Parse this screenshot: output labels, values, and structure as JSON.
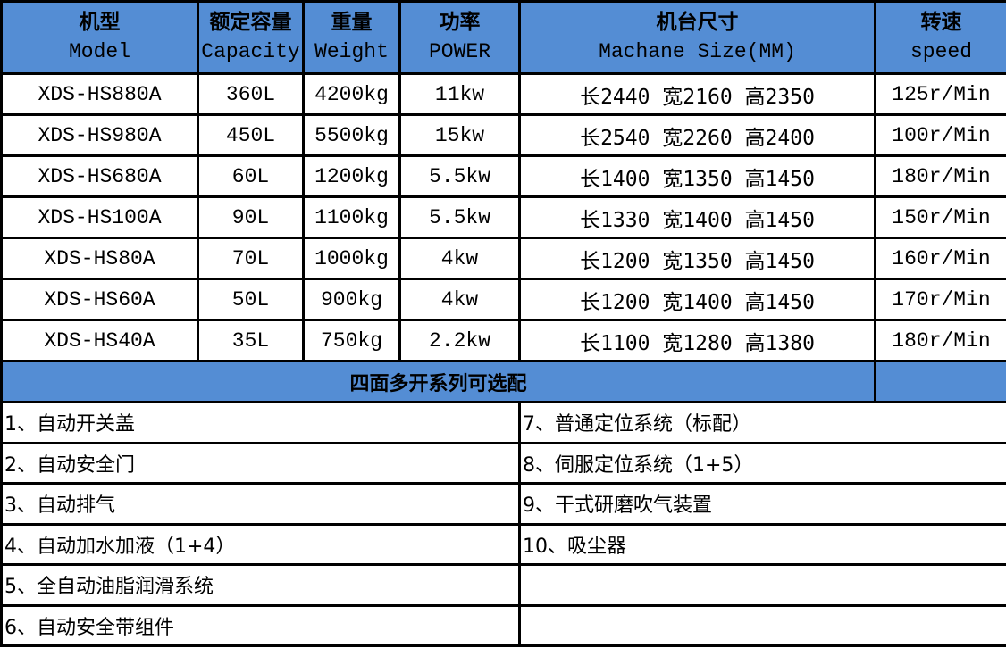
{
  "header": [
    {
      "cn": "机型",
      "en": "Model"
    },
    {
      "cn": "额定容量",
      "en": "Capacity"
    },
    {
      "cn": "重量",
      "en": "Weight"
    },
    {
      "cn": "功率",
      "en": "POWER"
    },
    {
      "cn": "机台尺寸",
      "en": "Machane Size(MM)"
    },
    {
      "cn": "转速",
      "en": "speed"
    }
  ],
  "rows": [
    {
      "model": "XDS-HS880A",
      "capacity": "360L",
      "weight": "4200kg",
      "power": "11kw",
      "size": "长2440 宽2160 高2350",
      "speed": "125r/Min"
    },
    {
      "model": "XDS-HS980A",
      "capacity": "450L",
      "weight": "5500kg",
      "power": "15kw",
      "size": "长2540 宽2260 高2400",
      "speed": "100r/Min"
    },
    {
      "model": "XDS-HS680A",
      "capacity": "60L",
      "weight": "1200kg",
      "power": "5.5kw",
      "size": "长1400 宽1350 高1450",
      "speed": "180r/Min"
    },
    {
      "model": "XDS-HS100A",
      "capacity": "90L",
      "weight": "1100kg",
      "power": "5.5kw",
      "size": "长1330 宽1400 高1450",
      "speed": "150r/Min"
    },
    {
      "model": "XDS-HS80A",
      "capacity": "70L",
      "weight": "1000kg",
      "power": "4kw",
      "size": "长1200 宽1350 高1450",
      "speed": "160r/Min"
    },
    {
      "model": "XDS-HS60A",
      "capacity": "50L",
      "weight": "900kg",
      "power": "4kw",
      "size": "长1200 宽1400 高1450",
      "speed": "170r/Min"
    },
    {
      "model": "XDS-HS40A",
      "capacity": "35L",
      "weight": "750kg",
      "power": "2.2kw",
      "size": "长1100 宽1280 高1380",
      "speed": "180r/Min"
    }
  ],
  "series_title": "四面多开系列可选配",
  "options_left": [
    "1、自动开关盖",
    "2、自动安全门",
    "3、自动排气",
    "4、自动加水加液（1+4）",
    "5、全自动油脂润滑系统",
    "6、自动安全带组件"
  ],
  "options_right": [
    "7、普通定位系统（标配）",
    "8、伺服定位系统（1+5）",
    "9、干式研磨吹气装置",
    "10、吸尘器",
    "",
    ""
  ],
  "colors": {
    "header_bg": "#548dd4"
  }
}
